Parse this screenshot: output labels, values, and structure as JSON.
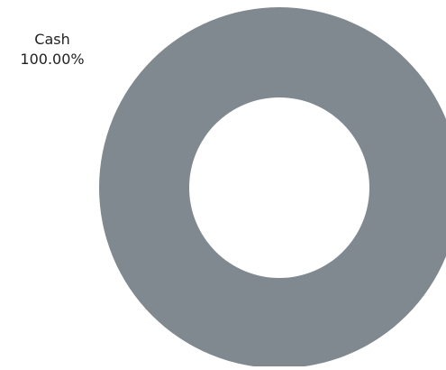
{
  "chart_data": {
    "type": "pie",
    "donut": true,
    "slices": [
      {
        "label": "Cash",
        "value": 100.0,
        "percent_label": "100.00%",
        "color": "#7f898f"
      }
    ]
  }
}
